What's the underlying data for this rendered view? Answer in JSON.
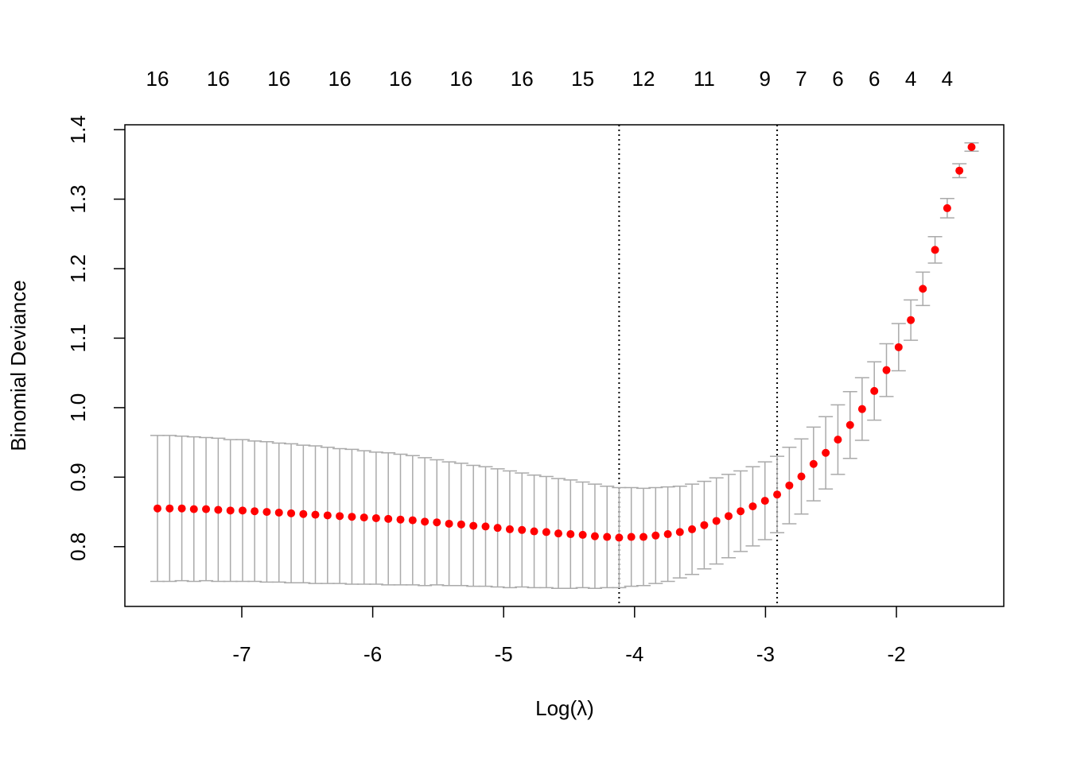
{
  "chart_data": {
    "type": "errorbar",
    "xlabel": "Log(λ)",
    "ylabel": "Binomial Deviance",
    "x": [
      -7.644,
      -7.551,
      -7.458,
      -7.366,
      -7.273,
      -7.18,
      -7.087,
      -6.994,
      -6.902,
      -6.809,
      -6.716,
      -6.623,
      -6.53,
      -6.438,
      -6.345,
      -6.252,
      -6.159,
      -6.066,
      -5.974,
      -5.881,
      -5.788,
      -5.695,
      -5.602,
      -5.51,
      -5.417,
      -5.324,
      -5.231,
      -5.138,
      -5.046,
      -4.953,
      -4.86,
      -4.767,
      -4.674,
      -4.582,
      -4.489,
      -4.396,
      -4.303,
      -4.21,
      -4.118,
      -4.025,
      -3.932,
      -3.839,
      -3.746,
      -3.654,
      -3.561,
      -3.468,
      -3.375,
      -3.282,
      -3.19,
      -3.097,
      -3.004,
      -2.911,
      -2.818,
      -2.726,
      -2.633,
      -2.54,
      -2.447,
      -2.354,
      -2.262,
      -2.169,
      -2.076,
      -1.983,
      -1.89,
      -1.798,
      -1.705,
      -1.612,
      -1.519,
      -1.426
    ],
    "values": [
      0.855,
      0.855,
      0.855,
      0.854,
      0.854,
      0.853,
      0.852,
      0.852,
      0.851,
      0.85,
      0.849,
      0.848,
      0.847,
      0.846,
      0.845,
      0.844,
      0.843,
      0.842,
      0.841,
      0.84,
      0.839,
      0.838,
      0.836,
      0.835,
      0.833,
      0.832,
      0.83,
      0.829,
      0.827,
      0.825,
      0.824,
      0.822,
      0.821,
      0.819,
      0.818,
      0.817,
      0.815,
      0.814,
      0.813,
      0.814,
      0.814,
      0.816,
      0.818,
      0.821,
      0.825,
      0.831,
      0.837,
      0.844,
      0.851,
      0.858,
      0.866,
      0.875,
      0.888,
      0.901,
      0.919,
      0.935,
      0.954,
      0.975,
      0.998,
      1.024,
      1.054,
      1.087,
      1.126,
      1.171,
      1.227,
      1.287,
      1.341,
      1.375
    ],
    "errors": [
      0.105,
      0.105,
      0.104,
      0.104,
      0.103,
      0.103,
      0.102,
      0.102,
      0.101,
      0.101,
      0.1,
      0.1,
      0.099,
      0.099,
      0.098,
      0.097,
      0.097,
      0.096,
      0.095,
      0.095,
      0.094,
      0.093,
      0.092,
      0.09,
      0.089,
      0.088,
      0.087,
      0.086,
      0.085,
      0.084,
      0.082,
      0.081,
      0.08,
      0.079,
      0.078,
      0.076,
      0.075,
      0.073,
      0.072,
      0.071,
      0.07,
      0.069,
      0.068,
      0.066,
      0.065,
      0.063,
      0.062,
      0.06,
      0.058,
      0.057,
      0.056,
      0.055,
      0.055,
      0.054,
      0.053,
      0.052,
      0.05,
      0.048,
      0.045,
      0.042,
      0.038,
      0.034,
      0.029,
      0.024,
      0.019,
      0.014,
      0.01,
      0.006
    ],
    "color": "#ff0000",
    "error_color": "#aaaaaa",
    "vlines": [
      -4.118,
      -2.911
    ],
    "xlim": [
      -7.893,
      -1.18
    ],
    "ylim": [
      0.714,
      1.407
    ],
    "xticks": [
      -7,
      -6,
      -5,
      -4,
      -3,
      -2
    ],
    "yticks": [
      0.8,
      0.9,
      {
        "value": 1,
        "label": "1.0"
      },
      1.1,
      1.2,
      1.3,
      1.4
    ],
    "top_ticks": [
      {
        "value": -7.644,
        "label": "16"
      },
      {
        "value": -7.18,
        "label": "16"
      },
      {
        "value": -6.716,
        "label": "16"
      },
      {
        "value": -6.252,
        "label": "16"
      },
      {
        "value": -5.788,
        "label": "16"
      },
      {
        "value": -5.324,
        "label": "16"
      },
      {
        "value": -4.86,
        "label": "16"
      },
      {
        "value": -4.396,
        "label": "15"
      },
      {
        "value": -3.932,
        "label": "12"
      },
      {
        "value": -3.468,
        "label": "11"
      },
      {
        "value": -3.004,
        "label": "9"
      },
      {
        "value": -2.726,
        "label": "7"
      },
      {
        "value": -2.447,
        "label": "6"
      },
      {
        "value": -2.169,
        "label": "6"
      },
      {
        "value": -1.89,
        "label": "4"
      },
      {
        "value": -1.612,
        "label": "4"
      }
    ]
  }
}
